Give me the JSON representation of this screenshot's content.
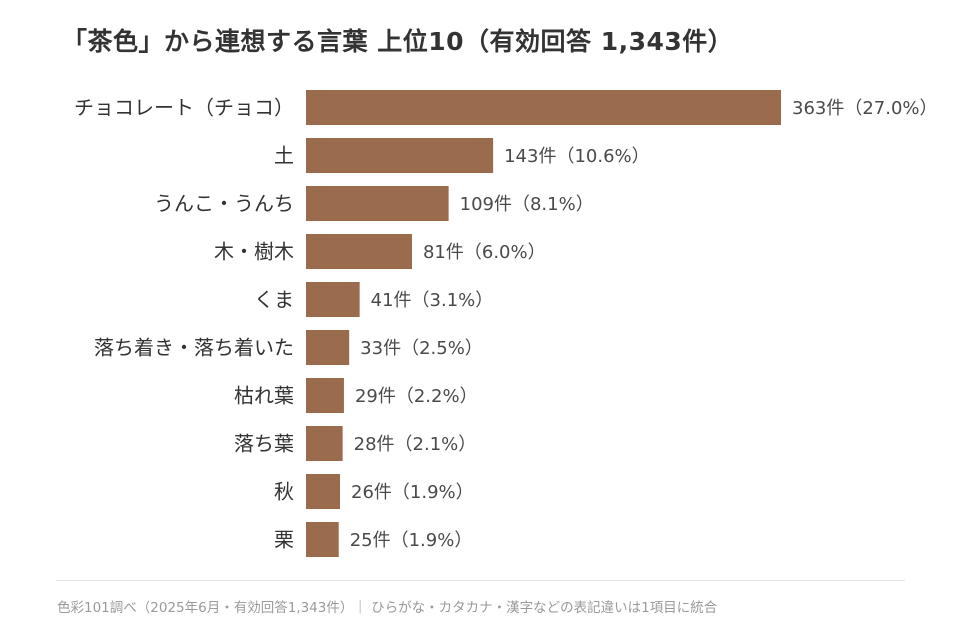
{
  "chart_data": {
    "type": "bar",
    "orientation": "horizontal",
    "title": "「茶色」から連想する言葉 上位10（有効回答 1,343件）",
    "categories": [
      "チョコレート（チョコ）",
      "土",
      "うんこ・うんち",
      "木・樹木",
      "くま",
      "落ち着き・落ち着いた",
      "枯れ葉",
      "落ち葉",
      "秋",
      "栗"
    ],
    "values": [
      363,
      143,
      109,
      81,
      41,
      33,
      29,
      28,
      26,
      25
    ],
    "value_labels": [
      "363件（27.0%）",
      "143件（10.6%）",
      "109件（8.1%）",
      "81件（6.0%）",
      "41件（3.1%）",
      "33件（2.5%）",
      "29件（2.2%）",
      "28件（2.1%）",
      "26件（1.9%）",
      "25件（1.9%）"
    ],
    "grid": false,
    "legend": "none",
    "bar_color": "#9b6b4e"
  },
  "footnote": "色彩101調べ（2025年6月・有効回答1,343件）｜ ひらがな・カタカナ・漢字などの表記違いは1項目に統合"
}
